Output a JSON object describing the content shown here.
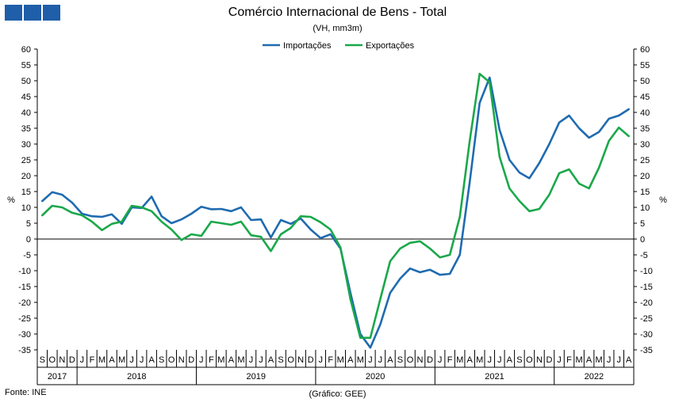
{
  "header": {
    "title": "Comércio Internacional de Bens - Total",
    "subtitle": "(VH, mm3m)",
    "logo_color": "#1f5ea8"
  },
  "footer": {
    "source": "Fonte: INE",
    "credit": "(Gráfico: GEE)"
  },
  "chart_data": {
    "type": "line",
    "title": "Comércio Internacional de Bens - Total",
    "subtitle": "(VH, mm3m)",
    "ylabel_left": "%",
    "ylabel_right": "%",
    "ylim": [
      -35,
      60
    ],
    "yticks": [
      60,
      55,
      50,
      45,
      40,
      35,
      30,
      25,
      20,
      15,
      10,
      5,
      0,
      -5,
      -10,
      -15,
      -20,
      -25,
      -30,
      -35
    ],
    "legend_position": "top-center",
    "grid": false,
    "months": [
      "S",
      "O",
      "N",
      "D",
      "J",
      "F",
      "M",
      "A",
      "M",
      "J",
      "J",
      "A",
      "S",
      "O",
      "N",
      "D",
      "J",
      "F",
      "M",
      "A",
      "M",
      "J",
      "J",
      "A",
      "S",
      "O",
      "N",
      "D",
      "J",
      "F",
      "M",
      "A",
      "M",
      "J",
      "J",
      "A",
      "S",
      "O",
      "N",
      "D",
      "J",
      "F",
      "M",
      "A",
      "M",
      "J",
      "J",
      "A",
      "S",
      "O",
      "N",
      "D",
      "J",
      "F",
      "M",
      "A",
      "M",
      "J",
      "J",
      "A"
    ],
    "years": [
      {
        "label": "2017",
        "start": 0,
        "end": 4
      },
      {
        "label": "2018",
        "start": 4,
        "end": 16
      },
      {
        "label": "2019",
        "start": 16,
        "end": 28
      },
      {
        "label": "2020",
        "start": 28,
        "end": 40
      },
      {
        "label": "2021",
        "start": 40,
        "end": 52
      },
      {
        "label": "2022",
        "start": 52,
        "end": 60
      }
    ],
    "series": [
      {
        "name": "Importações",
        "color": "#1f6bb0",
        "values": [
          12,
          14.8,
          14,
          11.5,
          8,
          7.2,
          7,
          7.8,
          4.8,
          10,
          9.8,
          13.4,
          7.2,
          5,
          6.2,
          8,
          10.2,
          9.4,
          9.5,
          8.8,
          10,
          6,
          6.2,
          0.5,
          6,
          4.8,
          6.5,
          3,
          0.3,
          1.5,
          -3,
          -17,
          -30,
          -34.3,
          -27,
          -17,
          -12.5,
          -9.3,
          -10.5,
          -9.7,
          -11.3,
          -11,
          -5,
          18,
          43,
          51,
          34.5,
          25,
          21,
          19.2,
          24,
          30,
          36.8,
          39,
          35,
          32,
          33.8,
          38,
          39,
          41
        ]
      },
      {
        "name": "Exportações",
        "color": "#1aa84a",
        "values": [
          7.5,
          10.5,
          10,
          8.3,
          7.5,
          5.5,
          2.8,
          4.8,
          5.5,
          10.5,
          10,
          8.8,
          5.5,
          3,
          -0.3,
          1.5,
          1,
          5.5,
          5,
          4.5,
          5.5,
          1.2,
          0.7,
          -3.8,
          1.5,
          3.5,
          7.2,
          7,
          5.3,
          3,
          -2.7,
          -19,
          -31.2,
          -31.2,
          -19,
          -7,
          -3,
          -1.2,
          -0.7,
          -3,
          -5.8,
          -5,
          7,
          31,
          52.2,
          49.5,
          26,
          16,
          12,
          8.8,
          9.5,
          14,
          20.8,
          22,
          17.5,
          16,
          22.5,
          31,
          35.2,
          32.5
        ]
      }
    ]
  }
}
